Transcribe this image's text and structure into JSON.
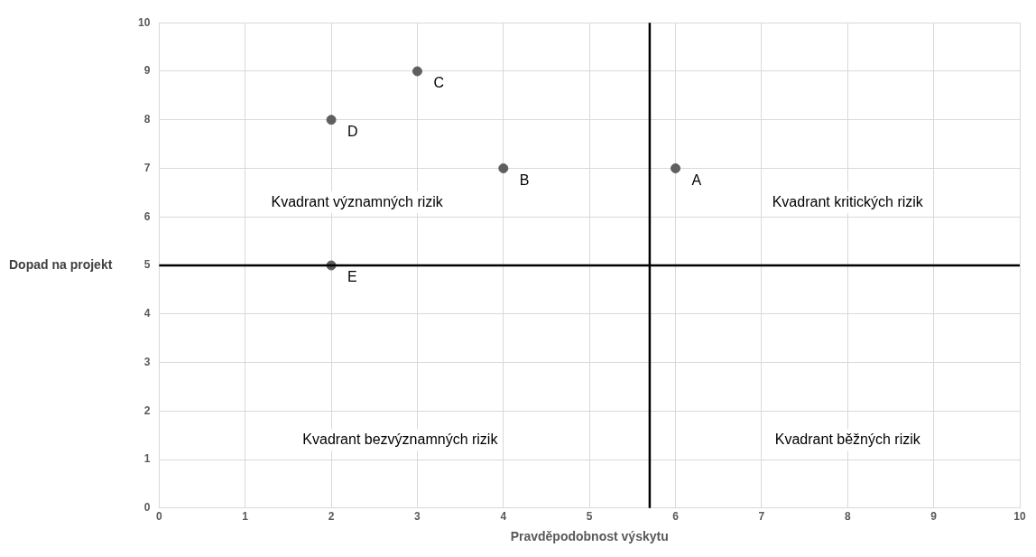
{
  "chart_data": {
    "type": "scatter",
    "xlabel": "Pravděpodobnost výskytu",
    "ylabel": "Dopad na projekt",
    "x": [
      6,
      4,
      3,
      2,
      2
    ],
    "series": [
      {
        "color": "#5f5f5f",
        "values": [
          7,
          7,
          9,
          8,
          5
        ],
        "value_labels": [
          "A",
          "B",
          "C",
          "D",
          "E"
        ]
      }
    ],
    "xlim": [
      0,
      10
    ],
    "xticks": [
      0,
      1,
      2,
      3,
      4,
      5,
      6,
      7,
      8,
      9,
      10
    ],
    "ylim": [
      0,
      10
    ],
    "yticks": [
      0,
      1,
      2,
      3,
      4,
      5,
      6,
      7,
      8,
      9,
      10
    ],
    "grid": true,
    "marker": "circle",
    "legend": false,
    "ref_lines": [
      {
        "axis": "x",
        "value": 5.7,
        "color": "#000000"
      },
      {
        "axis": "y",
        "value": 5,
        "color": "#000000"
      }
    ],
    "annotations": [
      "Kvadrant významných rizik",
      "Kvadrant kritických rizik",
      "Kvadrant bezvýznamných rizik",
      "Kvadrant běžných rizik"
    ]
  }
}
